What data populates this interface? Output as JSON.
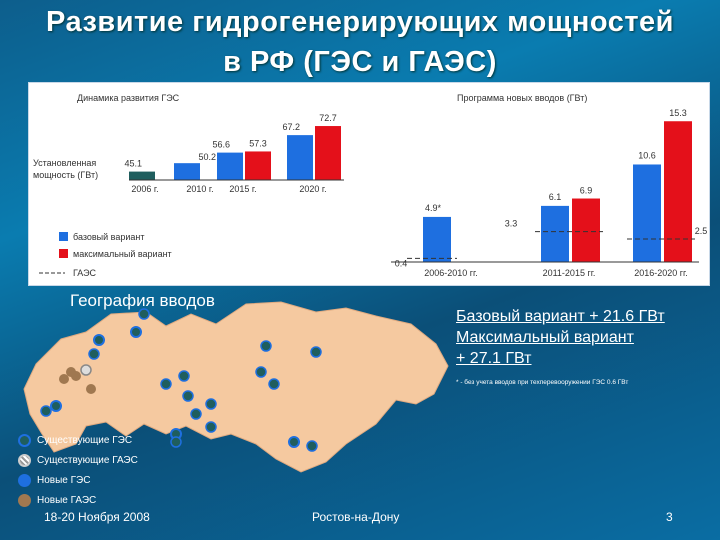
{
  "title_line1": "Развитие гидрогенерирующих мощностей",
  "title_line2": "в РФ (ГЭС и ГАЭС)",
  "chart_data": [
    {
      "type": "bar",
      "title": "Динамика развития ГЭС",
      "ylabel": "Установленная мощность (ГВт)",
      "categories": [
        "2006 г.",
        "2010 г.",
        "2015 г.",
        "2020 г."
      ],
      "series": [
        {
          "name": "базовый вариант",
          "values": [
            45.1,
            50.2,
            56.6,
            67.2
          ]
        },
        {
          "name": "максимальный вариант",
          "values": [
            null,
            null,
            57.3,
            72.7
          ]
        }
      ],
      "base_labels": [
        "45.1",
        "50.2",
        "56.6",
        "67.2"
      ],
      "max_labels": [
        "",
        "",
        "57.3",
        "72.7"
      ]
    },
    {
      "type": "bar",
      "title": "Программа новых вводов (ГВт)",
      "categories": [
        "2006-2010 гг.",
        "2011-2015 гг.",
        "2016-2020 гг."
      ],
      "series": [
        {
          "name": "базовый вариант",
          "values": [
            4.9,
            6.1,
            10.6
          ]
        },
        {
          "name": "максимальный вариант",
          "values": [
            null,
            6.9,
            15.3
          ]
        },
        {
          "name": "ГАЭС",
          "values": [
            0.4,
            3.3,
            2.5
          ]
        }
      ],
      "base_labels": [
        "4.9*",
        "6.1",
        "10.6"
      ],
      "max_labels": [
        "",
        "6.9",
        "15.3"
      ],
      "gaes_labels": [
        "0.4",
        "3.3",
        "2.5"
      ]
    }
  ],
  "legend": {
    "base": "базовый вариант",
    "max": "максимальный вариант",
    "gaes": "ГАЭС"
  },
  "colors": {
    "base": "#1e6fe0",
    "max": "#e4101a",
    "dark": "#1f5e5e",
    "map": "#f5c9a0",
    "new_gaes": "#a07850"
  },
  "geo_title": "География вводов",
  "variants": [
    "Базовый вариант + 21.6 ГВт",
    "Максимальный вариант",
    "+ 27.1 ГВт"
  ],
  "footnote": "* - без учета вводов при техперевооружении ГЭС 0.6 ГВт",
  "map_legend": [
    "Существующие ГЭС",
    "Существующие ГАЭС",
    "Новые ГЭС",
    "Новые ГАЭС"
  ],
  "map_legend_icons": [
    "existing-hpp-icon",
    "existing-pshpp-icon",
    "new-hpp-icon",
    "new-pshpp-icon"
  ],
  "footer": {
    "date": "18-20 Ноября 2008",
    "place": "Ростов-на-Дону",
    "page": "3"
  }
}
